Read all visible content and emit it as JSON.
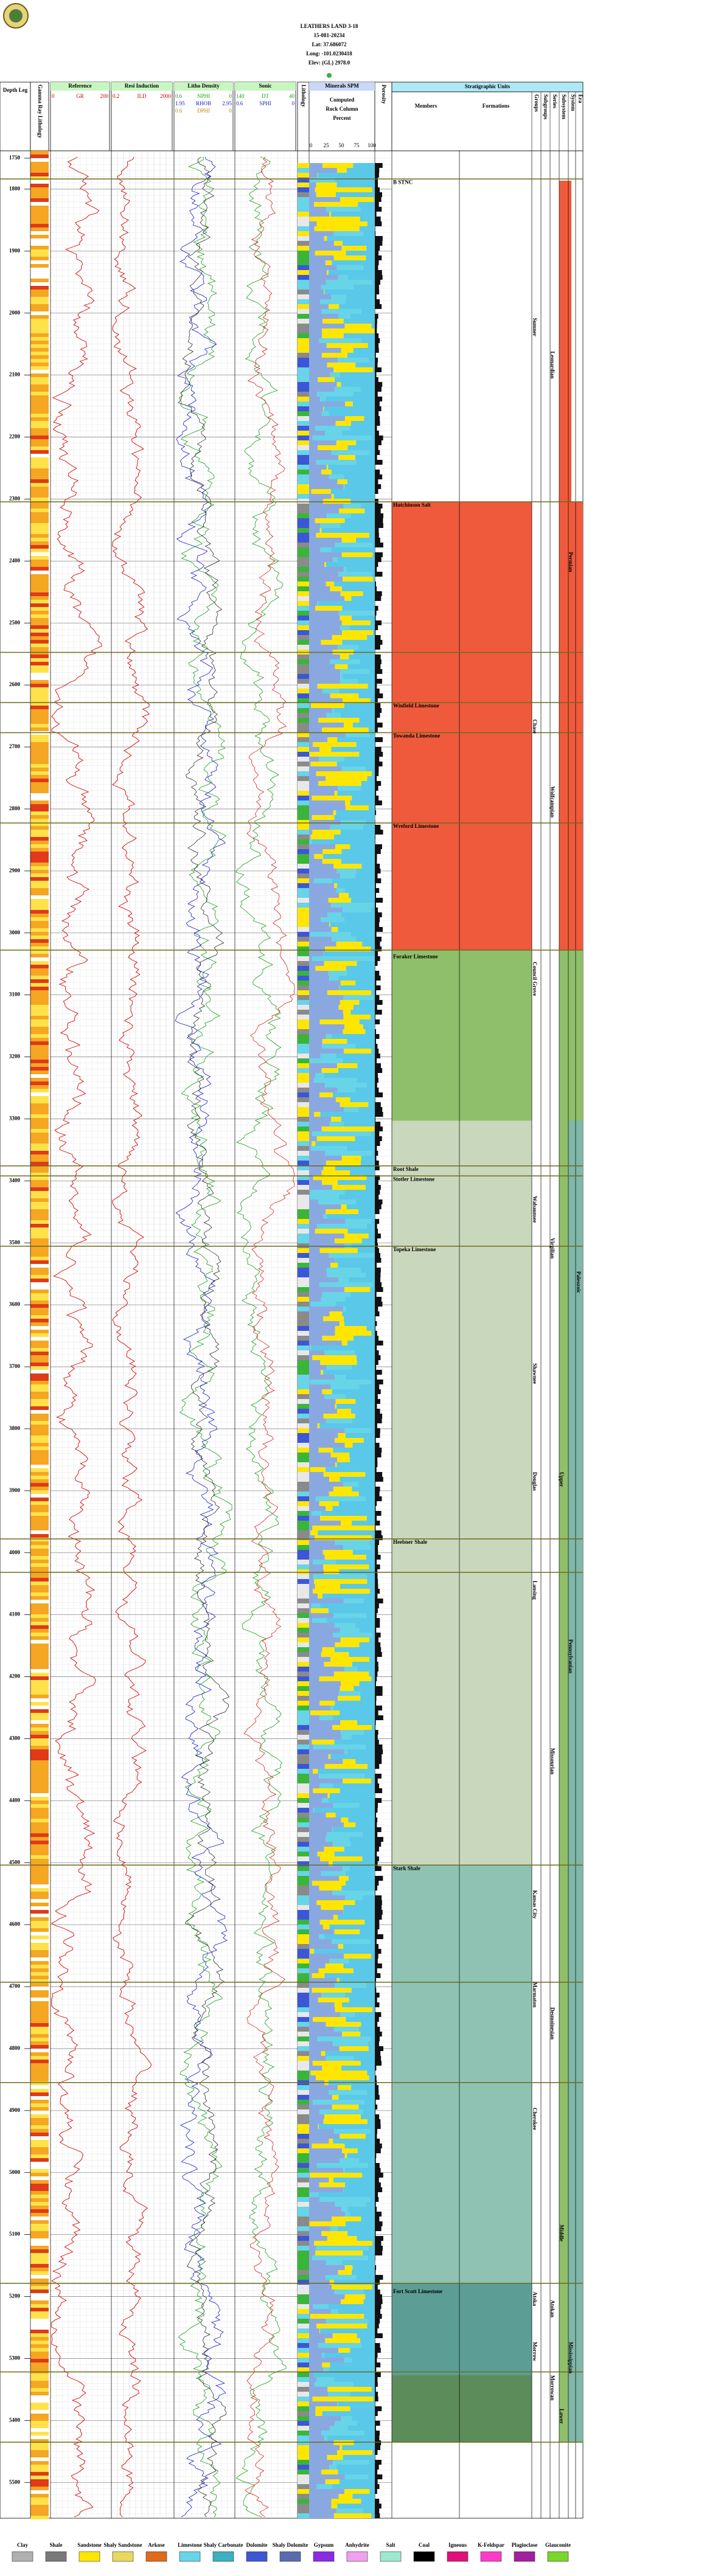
{
  "header": {
    "lines": [
      "LEATHERS LAND 3-18",
      "15-081-20234",
      "Lat: 37.686072",
      "Long: -101.0230418",
      "Elev: (GL) 2978.0"
    ]
  },
  "tracks": {
    "depth": "Depth Leg",
    "gamma": "Gamma Ray Lithology",
    "lithology": "Lithology",
    "porosity": "Porosity",
    "curves": [
      {
        "title": "Reference",
        "scales": [
          {
            "name": "GR",
            "min": "0",
            "max": "200"
          }
        ]
      },
      {
        "title": "Resi Induction",
        "scales": [
          {
            "name": "ILD",
            "min": "0.2",
            "max": "2000"
          }
        ]
      },
      {
        "title": "Litho Density",
        "scales": [
          {
            "name": "NPHI",
            "min": "0.6",
            "max": "0"
          },
          {
            "name": "RHOB",
            "min": "1.95",
            "max": "2.95"
          },
          {
            "name": "DPHI",
            "min": "0.6",
            "max": "0"
          }
        ]
      },
      {
        "title": "Sonic",
        "scales": [
          {
            "name": "DT",
            "min": "140",
            "max": "40"
          },
          {
            "name": "SPHI",
            "min": "0.6",
            "max": "0"
          }
        ]
      }
    ],
    "minerals": {
      "title": "Minerals SPM",
      "sub": [
        "Computed",
        "Rock Column",
        "Percent"
      ],
      "ticks": [
        "0",
        "25",
        "50",
        "75",
        "100"
      ]
    }
  },
  "depths": [
    1750,
    1800,
    1900,
    2000,
    2100,
    2200,
    2300,
    2400,
    2500,
    2600,
    2700,
    2800,
    2900,
    3000,
    3100,
    3200,
    3300,
    3400,
    3500,
    3600,
    3700,
    3800,
    3900,
    4000,
    4100,
    4200,
    4300,
    4400,
    4500,
    4600,
    4700,
    4800,
    4900,
    5000,
    5100,
    5200,
    5300,
    5400,
    5500
  ],
  "strat": {
    "title": "Stratigraphic Units",
    "columns": [
      "Members",
      "Formations",
      "Groups",
      "Subgroups",
      "Series",
      "Subsystem",
      "System",
      "Era"
    ],
    "members": [
      "B STNC",
      "Hutchinson Salt",
      "Winfield Limestone",
      "Towanda Limestone",
      "Wreford Limestone",
      "Foraker Limestone",
      "Root Shale",
      "Stotler Limestone",
      "Topeka Limestone",
      "Heebner Shale",
      "Stark Shale",
      "Fort Scott Limestone"
    ],
    "groups": [
      "Sumner",
      "Chase",
      "Council Grove",
      "Wabaunsee",
      "Shawnee",
      "Douglas",
      "Lansing",
      "Kansas City",
      "Marmaton",
      "Cherokee",
      "Atoka",
      "Morrow"
    ],
    "series": [
      "Leonardian",
      "Wolfcampian",
      "Virgilian",
      "Missourian",
      "Desmoinesian",
      "Atokan",
      "Morrowan"
    ],
    "subsystems": [
      "Upper",
      "Middle",
      "Lower"
    ],
    "systems": [
      "Permian",
      "Pennsylvanian",
      "Mississippian"
    ],
    "era": [
      "Paleozoic"
    ]
  },
  "legend": [
    "Clay",
    "Shale",
    "Sandstone",
    "Shaly Sandstone",
    "Arkose",
    "Limestone",
    "Shaly Carbonate",
    "Dolomite",
    "Shaly Dolomite",
    "Gypsum",
    "Anhydrite",
    "Salt",
    "Coal",
    "Igneous",
    "K-Feldspar",
    "Plagioclase",
    "Glauconite"
  ]
}
